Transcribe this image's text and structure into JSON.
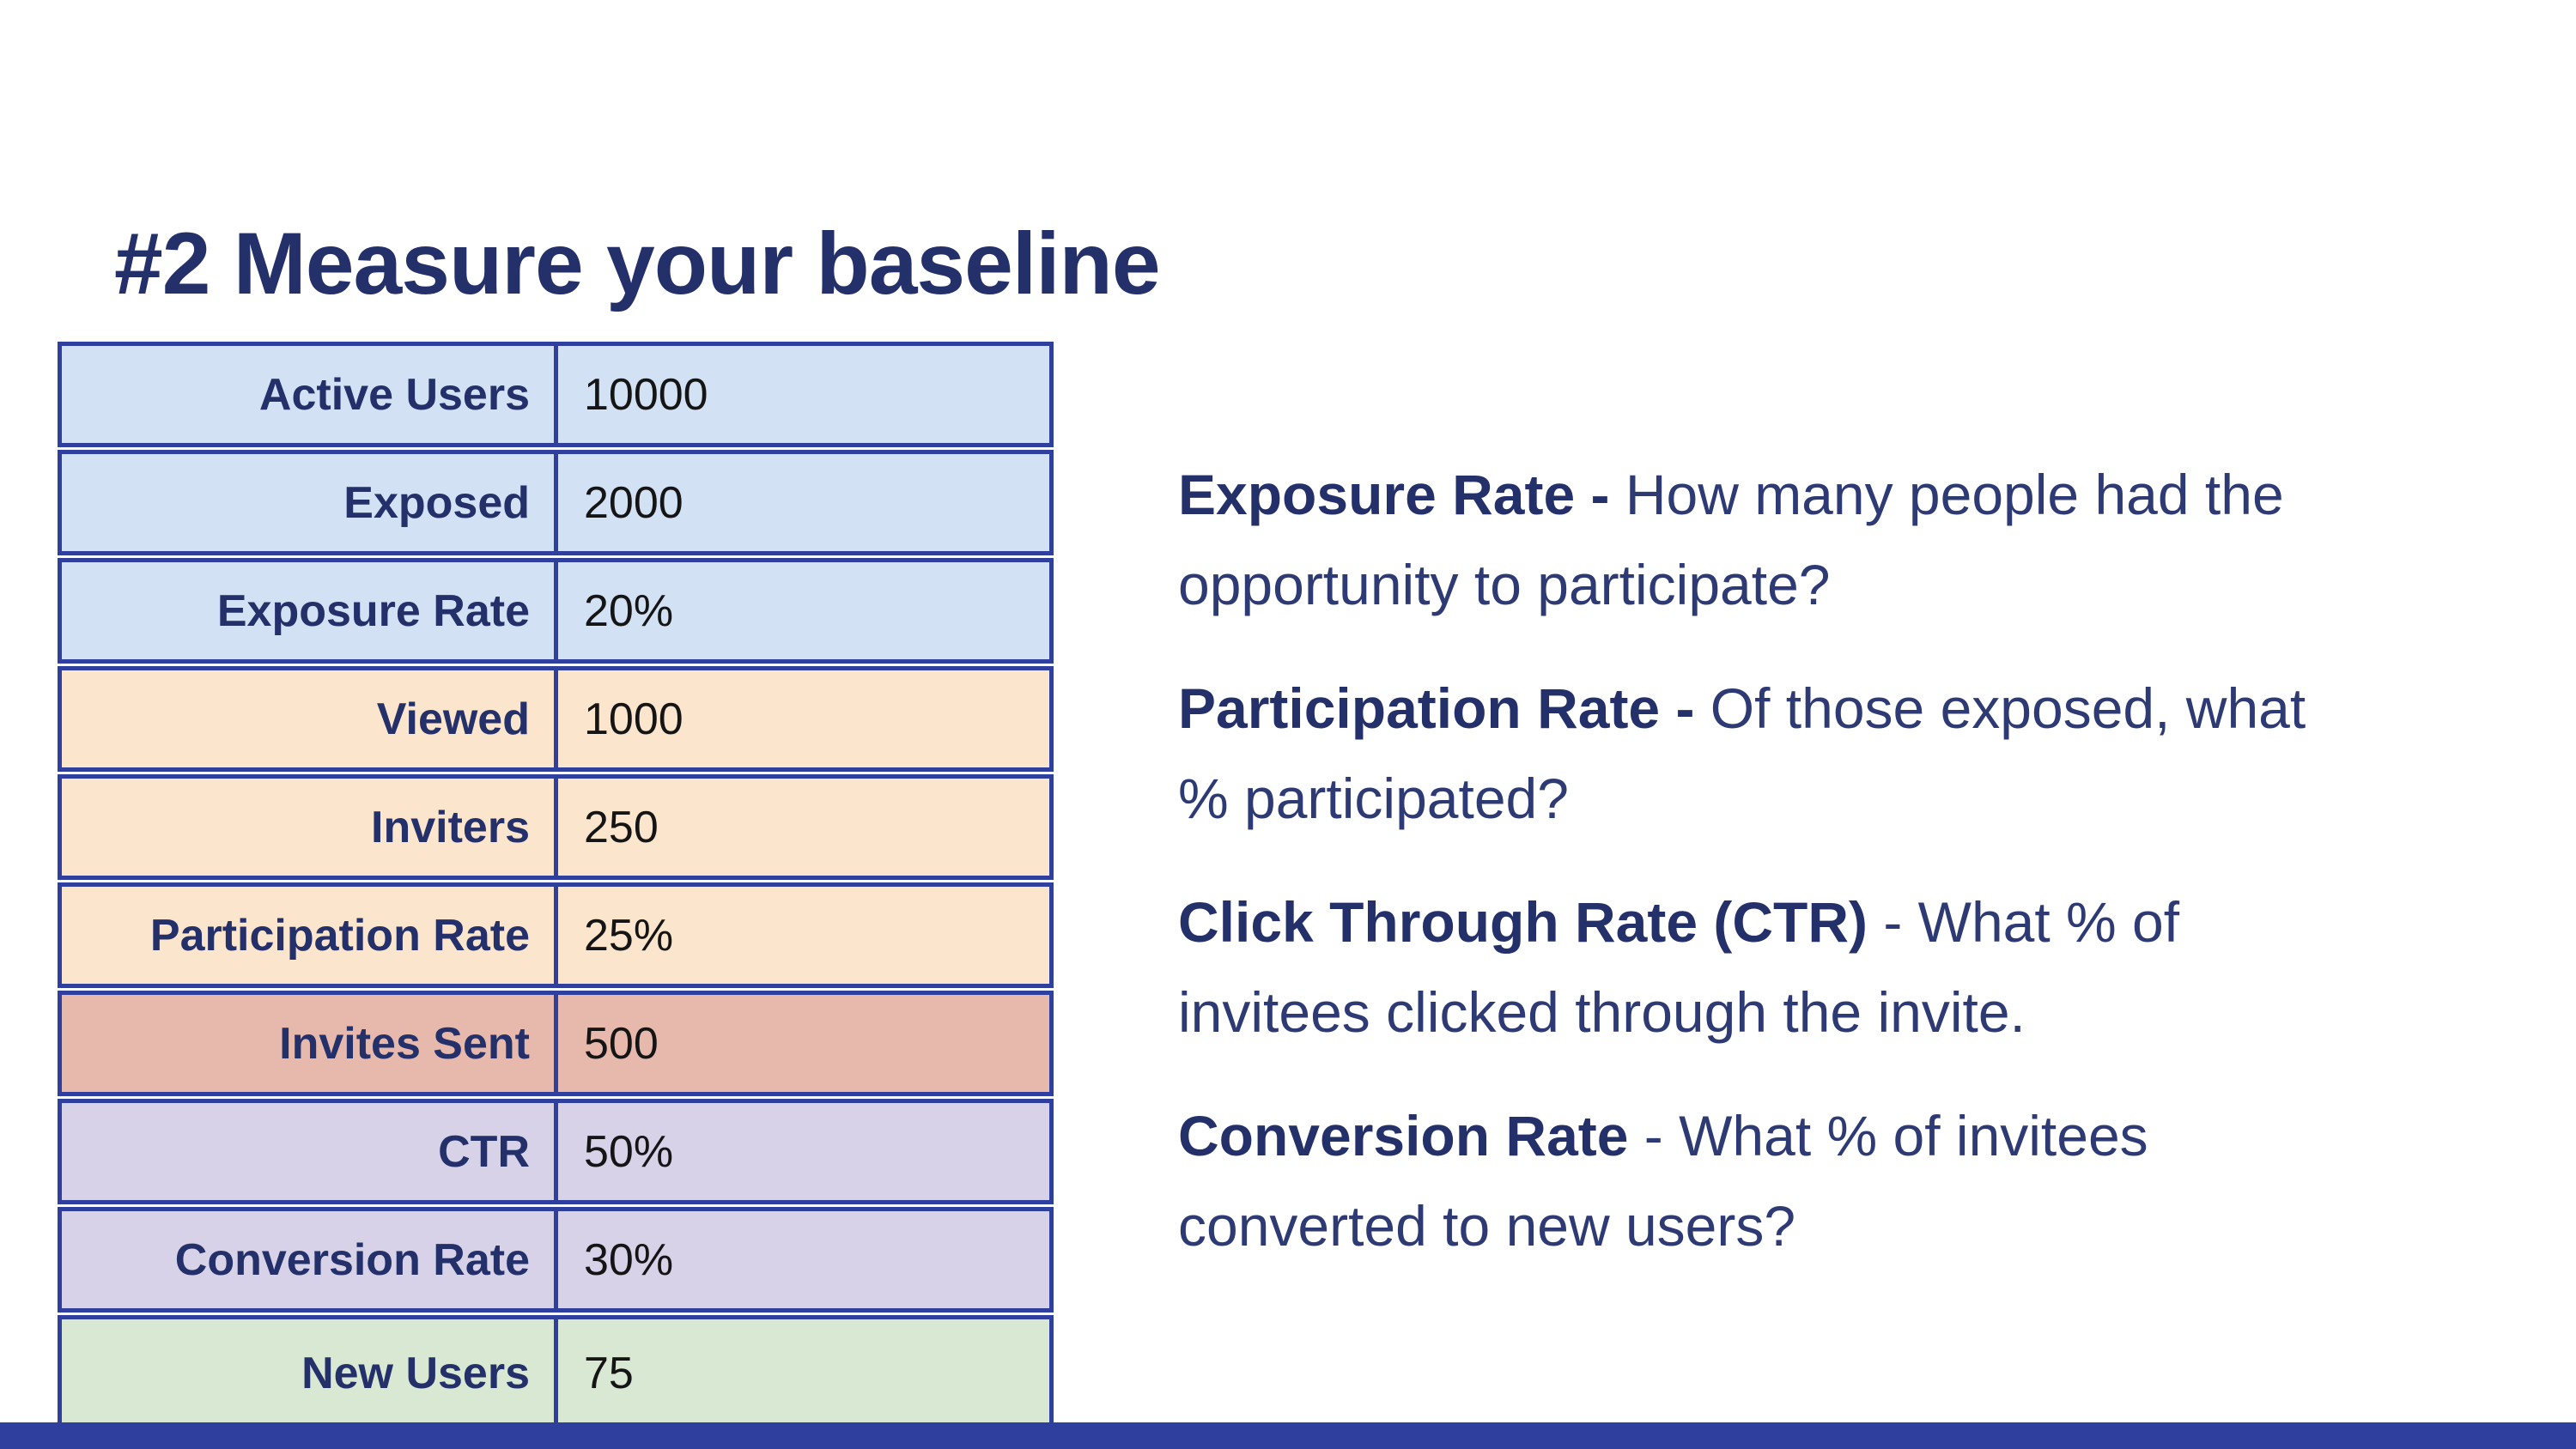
{
  "slide": {
    "title": "#2 Measure your baseline",
    "table": {
      "rows": [
        {
          "label": "Active Users",
          "value": "10000",
          "bg": "blue"
        },
        {
          "label": "Exposed",
          "value": "2000",
          "bg": "blue"
        },
        {
          "label": "Exposure Rate",
          "value": "20%",
          "bg": "blue"
        },
        {
          "label": "Viewed",
          "value": "1000",
          "bg": "peach"
        },
        {
          "label": "Inviters",
          "value": "250",
          "bg": "peach"
        },
        {
          "label": "Participation Rate",
          "value": "25%",
          "bg": "peach"
        },
        {
          "label": "Invites Sent",
          "value": "500",
          "bg": "salmon"
        },
        {
          "label": "CTR",
          "value": "50%",
          "bg": "lavender"
        },
        {
          "label": "Conversion Rate",
          "value": "30%",
          "bg": "lavender"
        },
        {
          "label": "New Users",
          "value": "75",
          "bg": "green"
        }
      ]
    },
    "definitions": [
      {
        "term": "Exposure Rate -",
        "rest": " How many people had the opportunity to participate?"
      },
      {
        "term": "Participation Rate -",
        "rest": " Of those exposed, what % participated?"
      },
      {
        "term": "Click Through Rate (CTR)",
        "rest": " - What % of invitees clicked through the invite."
      },
      {
        "term": "Conversion Rate",
        "rest": " - What % of invitees converted to new users?"
      }
    ],
    "colors": {
      "navy_text": "#24306a",
      "body_text": "#2d3a74",
      "value_text": "#151515",
      "table_border": "#2f3f9d",
      "footer_bar": "#2f3f9d",
      "row_blue": "#d3e1f4",
      "row_peach": "#fce5cd",
      "row_salmon": "#e7b9ac",
      "row_lavender": "#d8d2e9",
      "row_green": "#d9e8d2",
      "background": "#ffffff"
    }
  }
}
